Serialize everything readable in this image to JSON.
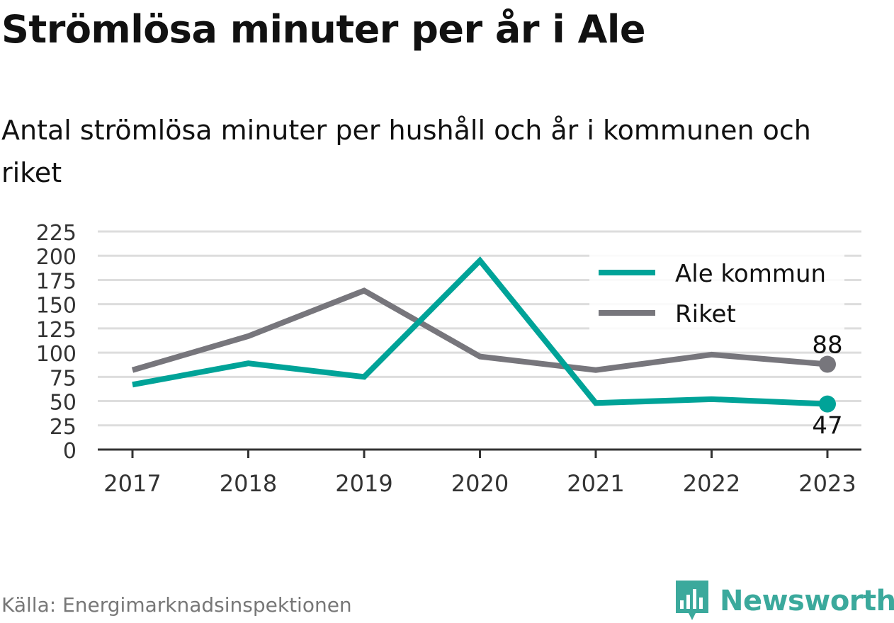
{
  "title": "Strömlösa minuter per år i Ale",
  "subtitle": "Antal strömlösa minuter per hushåll och år i kommunen och riket",
  "source": "Källa: Energimarknadsinspektionen",
  "brand": {
    "name": "Newsworthy",
    "icon": "newsworthy-logo-icon",
    "color": "#3ba99c"
  },
  "chart_data": {
    "type": "line",
    "x": [
      "2017",
      "2018",
      "2019",
      "2020",
      "2021",
      "2022",
      "2023"
    ],
    "yticks": [
      "0",
      "25",
      "50",
      "75",
      "100",
      "125",
      "150",
      "175",
      "200",
      "225"
    ],
    "ylim": [
      0,
      225
    ],
    "grid": true,
    "legend_position": "top-right",
    "series": [
      {
        "name": "Ale kommun",
        "color": "#00a398",
        "values": [
          67,
          89,
          75,
          195,
          48,
          52,
          47
        ],
        "end_label": "47"
      },
      {
        "name": "Riket",
        "color": "#77767c",
        "values": [
          82,
          117,
          164,
          96,
          82,
          98,
          88
        ],
        "end_label": "88"
      }
    ]
  }
}
